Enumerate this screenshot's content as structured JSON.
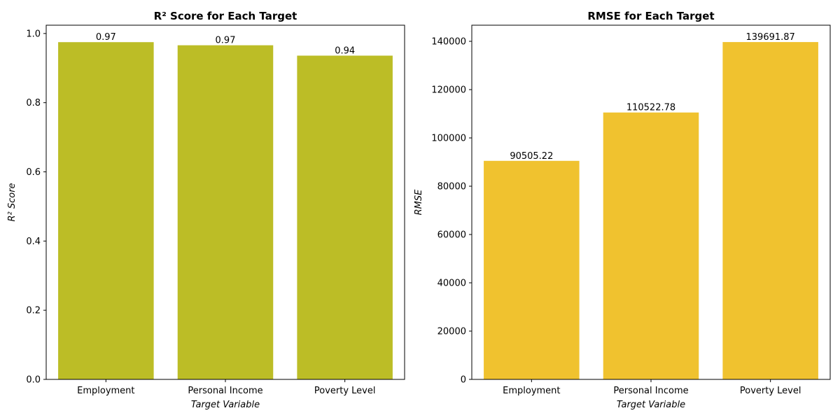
{
  "chart_data": [
    {
      "type": "bar",
      "title": "R² Score for Each Target",
      "xlabel": "Target Variable",
      "ylabel": "R² Score",
      "categories": [
        "Employment",
        "Personal Income",
        "Poverty Level"
      ],
      "values": [
        0.975,
        0.966,
        0.936
      ],
      "data_labels": [
        "0.97",
        "0.97",
        "0.94"
      ],
      "yticks": [
        0.0,
        0.2,
        0.4,
        0.6,
        0.8,
        1.0
      ],
      "ytick_labels": [
        "0.0",
        "0.2",
        "0.4",
        "0.6",
        "0.8",
        "1.0"
      ],
      "ylim": [
        0,
        1.024
      ],
      "color": "#bcbd26",
      "grid": false,
      "legend": "none"
    },
    {
      "type": "bar",
      "title": "RMSE for Each Target",
      "xlabel": "Target Variable",
      "ylabel": "RMSE",
      "categories": [
        "Employment",
        "Personal Income",
        "Poverty Level"
      ],
      "values": [
        90505.22,
        110522.78,
        139691.87
      ],
      "data_labels": [
        "90505.22",
        "110522.78",
        "139691.87"
      ],
      "yticks": [
        0,
        20000,
        40000,
        60000,
        80000,
        100000,
        120000,
        140000
      ],
      "ytick_labels": [
        "0",
        "20000",
        "40000",
        "60000",
        "80000",
        "100000",
        "120000",
        "140000"
      ],
      "ylim": [
        0,
        146676
      ],
      "color": "#f0c22f",
      "grid": false,
      "legend": "none"
    }
  ]
}
